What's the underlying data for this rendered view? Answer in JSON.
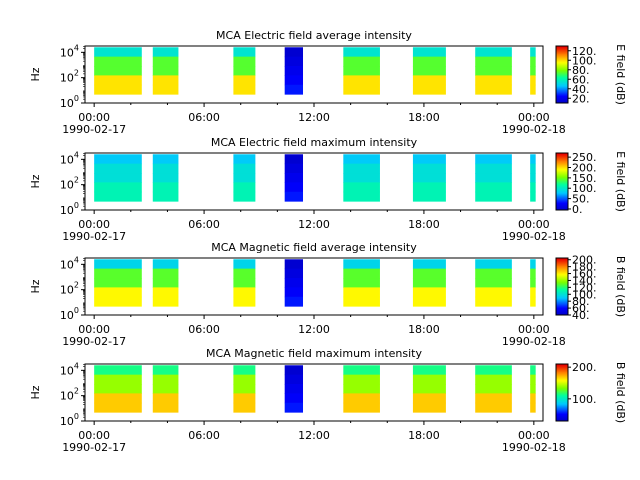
{
  "chart_data": [
    {
      "type": "heatmap",
      "title": "MCA  Electric field average intensity",
      "ylabel": "Hz",
      "y_ticks": [
        {
          "base": "10",
          "exp": "0"
        },
        {
          "base": "10",
          "exp": "2"
        },
        {
          "base": "10",
          "exp": "4"
        }
      ],
      "ylim": [
        1,
        31623
      ],
      "y_scale": "log",
      "x_ticks": [
        "00:00",
        "06:00",
        "12:00",
        "18:00",
        "00:00"
      ],
      "x_tick_hours": [
        0,
        6,
        12,
        18,
        24
      ],
      "x_dates": [
        "1990-02-17",
        "1990-02-18"
      ],
      "xlim": [
        -0.5,
        24.5
      ],
      "colorbar": {
        "label": "E field (dB)",
        "ticks": [
          "20.",
          "40.",
          "60.",
          "80.",
          "100.",
          "120."
        ],
        "tick_values": [
          20,
          40,
          60,
          80,
          100,
          120
        ],
        "range": [
          10,
          130
        ]
      },
      "segments": [
        [
          0,
          2.6
        ],
        [
          3.2,
          4.6
        ],
        [
          7.6,
          8.8
        ],
        [
          10.4,
          11.4
        ],
        [
          13.6,
          15.6
        ],
        [
          17.4,
          19.2
        ],
        [
          20.8,
          22.8
        ],
        [
          23.8,
          24.1
        ]
      ],
      "level_low": 100,
      "level_mid": 75,
      "level_high": 55,
      "dark_segment": 3
    },
    {
      "type": "heatmap",
      "title": "MCA  Electric field maximum intensity",
      "ylabel": "Hz",
      "y_ticks": [
        {
          "base": "10",
          "exp": "0"
        },
        {
          "base": "10",
          "exp": "2"
        },
        {
          "base": "10",
          "exp": "4"
        }
      ],
      "ylim": [
        1,
        31623
      ],
      "y_scale": "log",
      "x_ticks": [
        "00:00",
        "06:00",
        "12:00",
        "18:00",
        "00:00"
      ],
      "x_tick_hours": [
        0,
        6,
        12,
        18,
        24
      ],
      "x_dates": [
        "1990-02-17",
        "1990-02-18"
      ],
      "xlim": [
        -0.5,
        24.5
      ],
      "colorbar": {
        "label": "E field (dB)",
        "ticks": [
          "0.",
          "50.",
          "100.",
          "150.",
          "200.",
          "250."
        ],
        "tick_values": [
          0,
          50,
          100,
          150,
          200,
          250
        ],
        "range": [
          -5,
          270
        ]
      },
      "segments": [
        [
          0,
          2.6
        ],
        [
          3.2,
          4.6
        ],
        [
          7.6,
          8.8
        ],
        [
          10.4,
          11.4
        ],
        [
          13.6,
          15.6
        ],
        [
          17.4,
          19.2
        ],
        [
          20.8,
          22.8
        ],
        [
          23.8,
          24.1
        ]
      ],
      "level_low": 110,
      "level_mid": 95,
      "level_high": 80,
      "dark_segment": 3
    },
    {
      "type": "heatmap",
      "title": "MCA  Magnetic field average intensity",
      "ylabel": "Hz",
      "y_ticks": [
        {
          "base": "10",
          "exp": "0"
        },
        {
          "base": "10",
          "exp": "2"
        },
        {
          "base": "10",
          "exp": "4"
        }
      ],
      "ylim": [
        1,
        31623
      ],
      "y_scale": "log",
      "x_ticks": [
        "00:00",
        "06:00",
        "12:00",
        "18:00",
        "00:00"
      ],
      "x_tick_hours": [
        0,
        6,
        12,
        18,
        24
      ],
      "x_dates": [
        "1990-02-17",
        "1990-02-18"
      ],
      "xlim": [
        -0.5,
        24.5
      ],
      "colorbar": {
        "label": "B field (dB)",
        "ticks": [
          "40.",
          "60.",
          "80.",
          "100.",
          "120.",
          "140.",
          "160.",
          "180.",
          "200."
        ],
        "tick_values": [
          40,
          60,
          80,
          100,
          120,
          140,
          160,
          180,
          200
        ],
        "range": [
          40,
          205
        ]
      },
      "segments": [
        [
          0,
          2.6
        ],
        [
          3.2,
          4.6
        ],
        [
          7.6,
          8.8
        ],
        [
          10.4,
          11.4
        ],
        [
          13.6,
          15.6
        ],
        [
          17.4,
          19.2
        ],
        [
          20.8,
          22.8
        ],
        [
          23.8,
          24.1
        ]
      ],
      "level_low": 160,
      "level_mid": 130,
      "level_high": 95,
      "dark_segment": 3
    },
    {
      "type": "heatmap",
      "title": "MCA  Magnetic field maximum intensity",
      "ylabel": "Hz",
      "y_ticks": [
        {
          "base": "10",
          "exp": "0"
        },
        {
          "base": "10",
          "exp": "2"
        },
        {
          "base": "10",
          "exp": "4"
        }
      ],
      "ylim": [
        1,
        31623
      ],
      "y_scale": "log",
      "x_ticks": [
        "00:00",
        "06:00",
        "12:00",
        "18:00",
        "00:00"
      ],
      "x_tick_hours": [
        0,
        6,
        12,
        18,
        24
      ],
      "x_dates": [
        "1990-02-17",
        "1990-02-18"
      ],
      "xlim": [
        -0.5,
        24.5
      ],
      "colorbar": {
        "label": "B field (dB)",
        "ticks": [
          "100.",
          "200."
        ],
        "tick_values": [
          100,
          200
        ],
        "range": [
          30,
          210
        ]
      },
      "segments": [
        [
          0,
          2.6
        ],
        [
          3.2,
          4.6
        ],
        [
          7.6,
          8.8
        ],
        [
          10.4,
          11.4
        ],
        [
          13.6,
          15.6
        ],
        [
          17.4,
          19.2
        ],
        [
          20.8,
          22.8
        ],
        [
          23.8,
          24.1
        ]
      ],
      "level_low": 170,
      "level_mid": 140,
      "level_high": 115,
      "dark_segment": 3
    }
  ]
}
